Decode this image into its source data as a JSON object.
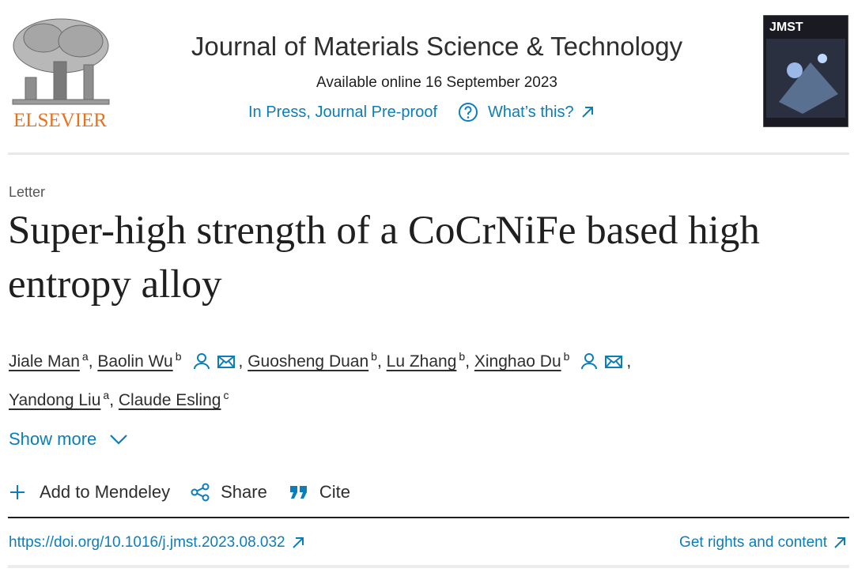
{
  "header": {
    "publisher": "ELSEVIER",
    "journal": "Journal of Materials Science & Technology",
    "available": "Available online 16 September 2023",
    "status": "In Press, Journal Pre-proof",
    "whats_this": "What’s this?",
    "cover": "JMST"
  },
  "article": {
    "type": "Letter",
    "title": "Super-high strength of a CoCrNiFe based high entropy alloy",
    "authors": [
      {
        "name": "Jiale Man",
        "affiliation": "a",
        "separator": ","
      },
      {
        "name": "Baolin Wu",
        "affiliation": "b",
        "separator": ","
      },
      {
        "name": "Guosheng Duan",
        "affiliation": "b",
        "separator": ","
      },
      {
        "name": "Lu Zhang",
        "affiliation": "b",
        "separator": ","
      },
      {
        "name": "Xinghao Du",
        "affiliation": "b",
        "separator": ","
      },
      {
        "name": "Yandong Liu",
        "affiliation": "a",
        "separator": ","
      },
      {
        "name": "Claude Esling",
        "affiliation": "c"
      }
    ],
    "show_more": "Show more",
    "actions": [
      "Add to Mendeley",
      "Share",
      "Cite"
    ],
    "doi": "https://doi.org/10.1016/j.jmst.2023.08.032",
    "rights": "Get rights and content"
  }
}
